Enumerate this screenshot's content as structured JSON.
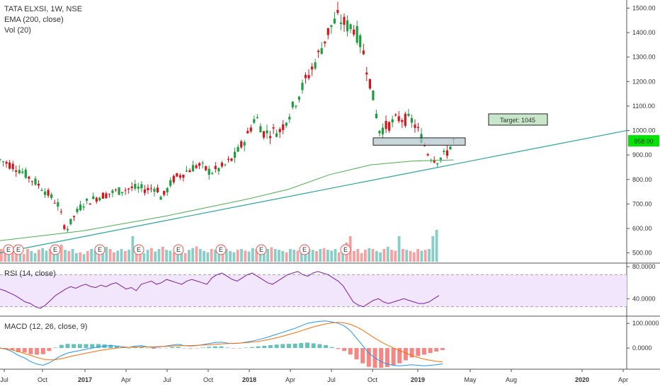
{
  "legend": {
    "symbol": "TATA ELXSI, 1W, NSE",
    "ema": "EMA (200, close)",
    "vol": "Vol (20)",
    "rsi": "RSI (14, close)",
    "macd": "MACD (12, 26, close, 9)"
  },
  "annotations": {
    "target": "Target: 1045",
    "last_price": "958.00",
    "earnings_marker": "E"
  },
  "colors": {
    "up": "#26a69a",
    "down": "#ef5350",
    "up_candle": "#1b9e3e",
    "down_candle": "#d7161b",
    "ema": "#4caf50",
    "trend": "#26a69a",
    "rsi_line": "#7b1fa2",
    "rsi_band": "#f1e6fb",
    "macd_line": "#2196f3",
    "signal_line": "#ff6d00",
    "price_badge": "#00e600"
  },
  "chart_data": [
    {
      "type": "candlestick",
      "title": "TATA ELXSI, 1W, NSE",
      "x_ticks": [
        "Jul",
        "Oct",
        "2017",
        "Apr",
        "Jul",
        "Oct",
        "2018",
        "Apr",
        "Jul",
        "Oct",
        "2019",
        "May",
        "Aug",
        "2020",
        "Apr"
      ],
      "y_ticks": [
        "1500.00",
        "1400.00",
        "1300.00",
        "1200.00",
        "1100.00",
        "1000.00",
        "900.00",
        "800.00",
        "700.00",
        "600.00",
        "500.00"
      ],
      "ylim": [
        470,
        1510
      ],
      "price_path": [
        [
          2016.5,
          880
        ],
        [
          2016.6,
          850
        ],
        [
          2016.75,
          770
        ],
        [
          2016.85,
          700
        ],
        [
          2016.9,
          590
        ],
        [
          2016.95,
          650
        ],
        [
          2017.0,
          700
        ],
        [
          2017.1,
          730
        ],
        [
          2017.2,
          750
        ],
        [
          2017.3,
          765
        ],
        [
          2017.4,
          760
        ],
        [
          2017.45,
          770
        ],
        [
          2017.48,
          720
        ],
        [
          2017.55,
          800
        ],
        [
          2017.62,
          830
        ],
        [
          2017.7,
          860
        ],
        [
          2017.78,
          830
        ],
        [
          2017.85,
          850
        ],
        [
          2017.92,
          890
        ],
        [
          2018.0,
          980
        ],
        [
          2018.05,
          1060
        ],
        [
          2018.1,
          990
        ],
        [
          2018.2,
          1000
        ],
        [
          2018.28,
          1100
        ],
        [
          2018.35,
          1200
        ],
        [
          2018.42,
          1290
        ],
        [
          2018.5,
          1420
        ],
        [
          2018.55,
          1460
        ],
        [
          2018.6,
          1430
        ],
        [
          2018.65,
          1420
        ],
        [
          2018.7,
          1330
        ],
        [
          2018.75,
          1180
        ],
        [
          2018.8,
          1000
        ],
        [
          2018.85,
          1020
        ],
        [
          2018.92,
          1050
        ],
        [
          2019.0,
          1040
        ],
        [
          2019.05,
          980
        ],
        [
          2019.1,
          900
        ],
        [
          2019.15,
          880
        ],
        [
          2019.2,
          900
        ],
        [
          2019.25,
          958
        ]
      ],
      "ema_200": [
        [
          2016.5,
          550
        ],
        [
          2016.75,
          570
        ],
        [
          2017.0,
          590
        ],
        [
          2017.25,
          620
        ],
        [
          2017.5,
          650
        ],
        [
          2017.75,
          685
        ],
        [
          2018.0,
          720
        ],
        [
          2018.25,
          760
        ],
        [
          2018.5,
          820
        ],
        [
          2018.75,
          860
        ],
        [
          2019.0,
          875
        ],
        [
          2019.25,
          880
        ]
      ],
      "trendline": [
        [
          2016.5,
          500
        ],
        [
          2020.3,
          1000
        ]
      ],
      "support_zone": [
        940,
        970
      ],
      "target": 1045,
      "last": 958
    },
    {
      "type": "bar",
      "name": "Vol (20)",
      "values": [
        30,
        25,
        35,
        28,
        40,
        22,
        18,
        30,
        25,
        20,
        28,
        32,
        26,
        30,
        22,
        35,
        40,
        28,
        25,
        30,
        20,
        22,
        18,
        25,
        30,
        28,
        24,
        20,
        35,
        30,
        22,
        26,
        30,
        25,
        28,
        60,
        30,
        22,
        20,
        28,
        32,
        24,
        30,
        35,
        28,
        26,
        22,
        30,
        25,
        20,
        28,
        32,
        36,
        30,
        25,
        22,
        30,
        28,
        26,
        34,
        30,
        25,
        22,
        28,
        30,
        26,
        24,
        32,
        30,
        28,
        26,
        30,
        34,
        30,
        28,
        25,
        22,
        30,
        28,
        26,
        35,
        40,
        30,
        28,
        25,
        30,
        32,
        28,
        26,
        30,
        22,
        28,
        45,
        60,
        25,
        30,
        20,
        28,
        32,
        30,
        25,
        22,
        30,
        35,
        28,
        26,
        60,
        30,
        28,
        25,
        22,
        30,
        26,
        28,
        30,
        60,
        75
      ],
      "directions": [
        "d",
        "d",
        "u",
        "d",
        "d",
        "u",
        "d",
        "d",
        "u",
        "u",
        "d",
        "u",
        "u",
        "d",
        "u",
        "u",
        "d",
        "u",
        "d",
        "u",
        "u",
        "d",
        "u",
        "d",
        "u",
        "u",
        "d",
        "u",
        "u",
        "d",
        "d",
        "u",
        "u",
        "d",
        "u",
        "u",
        "d",
        "d",
        "u",
        "u",
        "d",
        "u",
        "u",
        "d",
        "u",
        "u",
        "d",
        "u",
        "u",
        "d",
        "u",
        "u",
        "d",
        "u",
        "u",
        "u",
        "d",
        "u",
        "u",
        "d",
        "u",
        "u",
        "u",
        "d",
        "u",
        "d",
        "u",
        "u",
        "d",
        "u",
        "u",
        "u",
        "d",
        "u",
        "u",
        "u",
        "d",
        "u",
        "u",
        "d",
        "u",
        "u",
        "u",
        "u",
        "d",
        "u",
        "d",
        "u",
        "u",
        "u",
        "d",
        "u",
        "d",
        "d",
        "d",
        "d",
        "d",
        "d",
        "u",
        "d",
        "u",
        "u",
        "d",
        "u",
        "d",
        "d",
        "u",
        "d",
        "u",
        "d",
        "d",
        "d",
        "u",
        "d",
        "u",
        "u",
        "u"
      ]
    },
    {
      "type": "line",
      "name": "RSI (14, close)",
      "y_ticks": [
        "80.0000",
        "40.0000"
      ],
      "ylim": [
        20,
        80
      ],
      "bands": [
        70,
        30
      ],
      "values": [
        52,
        50,
        47,
        44,
        40,
        36,
        34,
        30,
        28,
        32,
        38,
        44,
        48,
        52,
        55,
        53,
        56,
        58,
        55,
        54,
        57,
        55,
        58,
        60,
        56,
        52,
        54,
        50,
        58,
        60,
        62,
        58,
        60,
        64,
        62,
        60,
        58,
        62,
        64,
        62,
        60,
        58,
        66,
        70,
        72,
        68,
        64,
        62,
        66,
        70,
        72,
        68,
        64,
        60,
        58,
        62,
        66,
        70,
        72,
        74,
        70,
        68,
        72,
        74,
        72,
        70,
        66,
        62,
        56,
        46,
        36,
        32,
        30,
        34,
        38,
        40,
        36,
        34,
        36,
        38,
        40,
        38,
        36,
        34,
        34,
        36,
        40,
        44
      ]
    },
    {
      "type": "line",
      "name": "MACD (12, 26, close, 9)",
      "y_ticks": [
        "100.0000",
        "0.0000"
      ],
      "ylim": [
        -80,
        115
      ],
      "macd": [
        0,
        -5,
        -15,
        -30,
        -40,
        -55,
        -65,
        -70,
        -60,
        -45,
        -30,
        -20,
        -15,
        -10,
        -5,
        0,
        5,
        8,
        10,
        8,
        5,
        3,
        8,
        10,
        5,
        2,
        5,
        8,
        12,
        15,
        10,
        8,
        10,
        14,
        18,
        22,
        24,
        20,
        18,
        20,
        24,
        28,
        34,
        40,
        48,
        56,
        64,
        72,
        80,
        90,
        100,
        105,
        108,
        110,
        106,
        100,
        90,
        70,
        40,
        10,
        -20,
        -40,
        -55,
        -65,
        -70,
        -72,
        -70,
        -68,
        -70,
        -72,
        -70,
        -68,
        -64
      ],
      "signal": [
        0,
        -3,
        -8,
        -14,
        -22,
        -30,
        -38,
        -45,
        -48,
        -47,
        -43,
        -37,
        -31,
        -26,
        -21,
        -16,
        -11,
        -7,
        -3,
        0,
        2,
        3,
        4,
        5,
        5,
        5,
        6,
        7,
        8,
        10,
        10,
        10,
        11,
        12,
        13,
        15,
        17,
        18,
        19,
        20,
        22,
        24,
        27,
        31,
        36,
        42,
        48,
        55,
        62,
        70,
        78,
        86,
        92,
        98,
        102,
        104,
        102,
        96,
        86,
        72,
        56,
        40,
        25,
        12,
        0,
        -10,
        -20,
        -30,
        -38,
        -45,
        -50,
        -54,
        -56
      ]
    }
  ]
}
